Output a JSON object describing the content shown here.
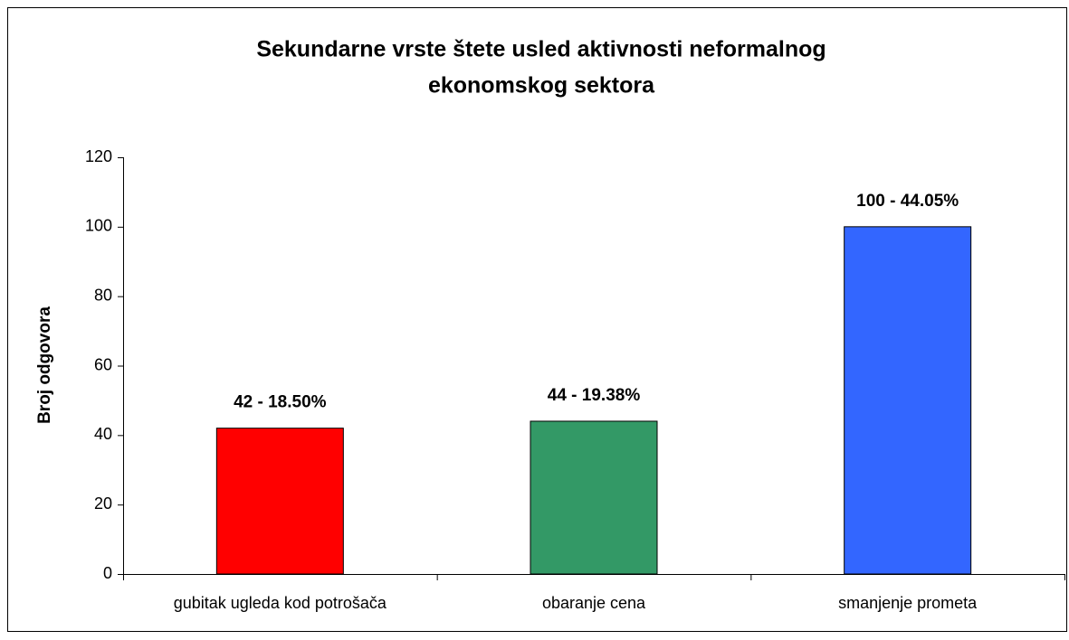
{
  "chart_data": {
    "type": "bar",
    "title": [
      "Sekundarne vrste štete usled aktivnosti neformalnog",
      "ekonomskog sektora"
    ],
    "y_label": "Broj odgovora",
    "categories": [
      "gubitak ugleda kod potrošača",
      "obaranje cena",
      "smanjenje prometa"
    ],
    "values": [
      42,
      44,
      100
    ],
    "value_labels": [
      "42 - 18.50%",
      "44 - 19.38%",
      "100 - 44.05%"
    ],
    "colors": [
      "#ff0000",
      "#339966",
      "#3366ff"
    ],
    "ylim": [
      0,
      120
    ],
    "yticks": [
      0,
      20,
      40,
      60,
      80,
      100,
      120
    ],
    "grid": false
  }
}
